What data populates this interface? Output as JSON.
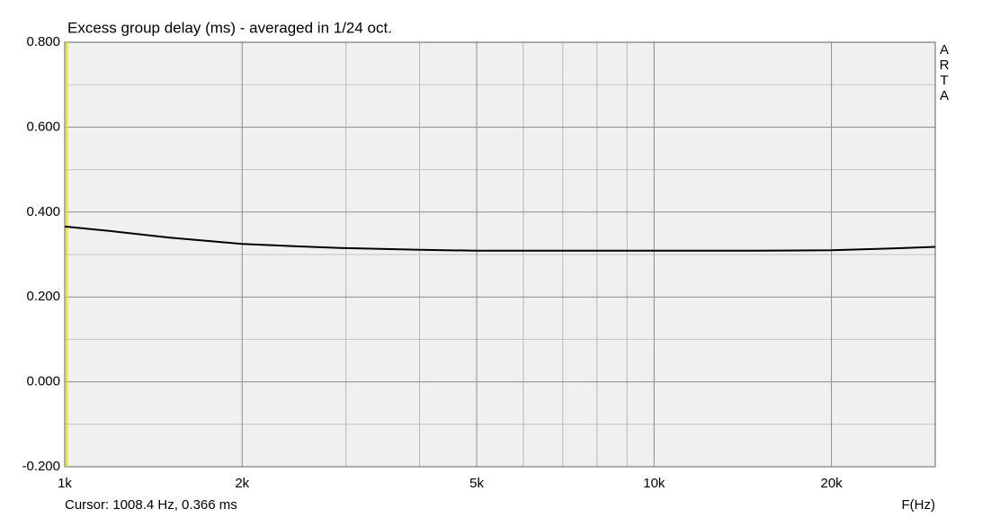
{
  "chart_data": {
    "type": "line",
    "title": "Excess group delay (ms) - averaged in 1/24 oct.",
    "x_label": "F(Hz)",
    "watermark": [
      "A",
      "R",
      "T",
      "A"
    ],
    "cursor_label": "Cursor: 1008.4 Hz, 0.366 ms",
    "cursor_x": 1008.4,
    "cursor_color": "#e8e800",
    "x_log": true,
    "grid": true,
    "xlim": [
      1000,
      30000
    ],
    "xticks": [
      {
        "value": 1000,
        "label": "1k"
      },
      {
        "value": 2000,
        "label": "2k"
      },
      {
        "value": 5000,
        "label": "5k"
      },
      {
        "value": 10000,
        "label": "10k"
      },
      {
        "value": 20000,
        "label": "20k"
      }
    ],
    "x_minor_grid": [
      3000,
      4000,
      6000,
      7000,
      8000,
      9000
    ],
    "ylim": [
      -0.2,
      0.8
    ],
    "yticks": [
      {
        "value": -0.2,
        "label": "-0.200"
      },
      {
        "value": 0,
        "label": "0.000"
      },
      {
        "value": 0.2,
        "label": "0.200"
      },
      {
        "value": 0.4,
        "label": "0.400"
      },
      {
        "value": 0.6,
        "label": "0.600"
      },
      {
        "value": 0.8,
        "label": "0.800"
      }
    ],
    "y_minor_grid": [
      -0.1,
      0.1,
      0.3,
      0.5,
      0.7
    ],
    "x": [
      1000,
      1200,
      1500,
      2000,
      2500,
      3000,
      4000,
      5000,
      7000,
      10000,
      15000,
      20000,
      25000,
      30000
    ],
    "series": [
      {
        "name": "Excess group delay",
        "color": "#000000",
        "values": [
          0.366,
          0.355,
          0.34,
          0.325,
          0.319,
          0.315,
          0.311,
          0.309,
          0.309,
          0.309,
          0.309,
          0.31,
          0.314,
          0.318
        ]
      }
    ]
  }
}
